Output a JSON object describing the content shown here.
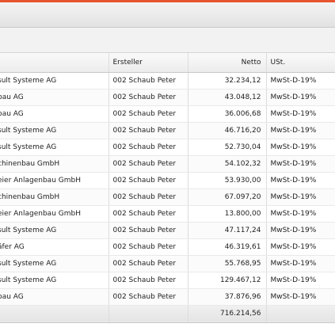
{
  "table": {
    "headers": {
      "name": "",
      "creator": "Ersteller",
      "net": "Netto",
      "tax": "USt."
    },
    "rows": [
      {
        "name": "sult Systeme AG",
        "creator": "002 Schaub Peter",
        "net": "32.234,12",
        "tax": "MwSt-D-19%"
      },
      {
        "name": "bau AG",
        "creator": "002 Schaub Peter",
        "net": "43.048,12",
        "tax": "MwSt-D-19%"
      },
      {
        "name": "bau AG",
        "creator": "002 Schaub Peter",
        "net": "36.006,68",
        "tax": "MwSt-D-19%"
      },
      {
        "name": "sult Systeme AG",
        "creator": "002 Schaub Peter",
        "net": "46.716,20",
        "tax": "MwSt-D-19%"
      },
      {
        "name": "sult Systeme AG",
        "creator": "002 Schaub Peter",
        "net": "52.730,04",
        "tax": "MwSt-D-19%"
      },
      {
        "name": "chinenbau GmbH",
        "creator": "002 Schaub Peter",
        "net": "54.102,32",
        "tax": "MwSt-D-19%"
      },
      {
        "name": "eier Anlagenbau GmbH",
        "creator": "002 Schaub Peter",
        "net": "53.930,00",
        "tax": "MwSt-D-19%"
      },
      {
        "name": "chinenbau GmbH",
        "creator": "002 Schaub Peter",
        "net": "67.097,20",
        "tax": "MwSt-D-19%"
      },
      {
        "name": "eier Anlagenbau GmbH",
        "creator": "002 Schaub Peter",
        "net": "13.800,00",
        "tax": "MwSt-D-19%"
      },
      {
        "name": "sult Systeme AG",
        "creator": "002 Schaub Peter",
        "net": "47.117,24",
        "tax": "MwSt-D-19%"
      },
      {
        "name": "äfer AG",
        "creator": "002 Schaub Peter",
        "net": "46.319,61",
        "tax": "MwSt-D-19%"
      },
      {
        "name": "sult Systeme AG",
        "creator": "002 Schaub Peter",
        "net": "55.768,95",
        "tax": "MwSt-D-19%"
      },
      {
        "name": "sult Systeme AG",
        "creator": "002 Schaub Peter",
        "net": "129.467,12",
        "tax": "MwSt-D-19%"
      },
      {
        "name": "bau AG",
        "creator": "002 Schaub Peter",
        "net": "37.876,96",
        "tax": "MwSt-D-19%"
      }
    ],
    "total_net": "716.214,56"
  },
  "colors": {
    "accent": "#e8562f"
  }
}
